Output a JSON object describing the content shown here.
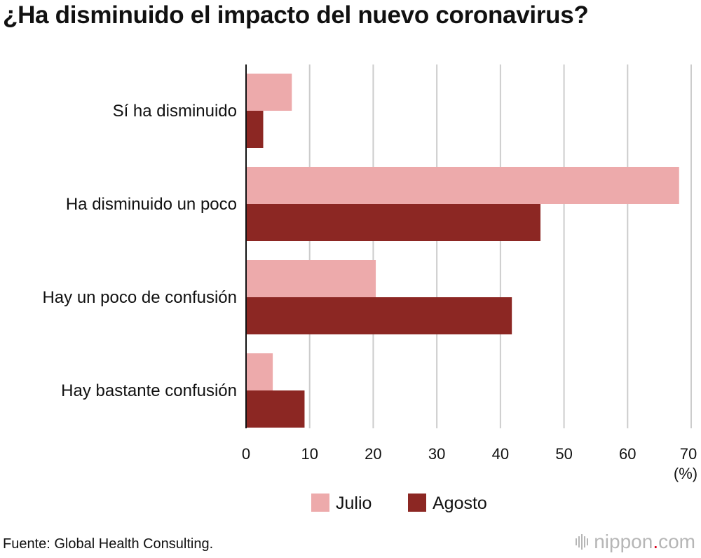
{
  "title": "¿Ha disminuido el impacto del nuevo coronavirus?",
  "source": "Fuente: Global Health Consulting.",
  "logo": {
    "name": "nippon",
    "dot": ".",
    "suffix": "com"
  },
  "colors": {
    "julio": "#EDAAAB",
    "agosto": "#8C2723",
    "grid": "#CCCCCC",
    "axis": "#111111",
    "logo_dot": "#D9001B"
  },
  "chart_data": {
    "type": "bar",
    "orientation": "horizontal",
    "title": "¿Ha disminuido el impacto del nuevo coronavirus?",
    "categories": [
      "Sí ha disminuido",
      "Ha disminuido un poco",
      "Hay un poco de confusión",
      "Hay bastante confusión"
    ],
    "series": [
      {
        "name": "Julio",
        "values": [
          7.2,
          68.1,
          20.4,
          4.2
        ]
      },
      {
        "name": "Agosto",
        "values": [
          2.7,
          46.3,
          41.8,
          9.2
        ]
      }
    ],
    "xlim": [
      0,
      70
    ],
    "xticks": [
      0,
      10,
      20,
      30,
      40,
      50,
      60,
      70
    ],
    "xlabel": "(%)",
    "ylabel": "",
    "grid": true,
    "legend": "bottom-center"
  }
}
